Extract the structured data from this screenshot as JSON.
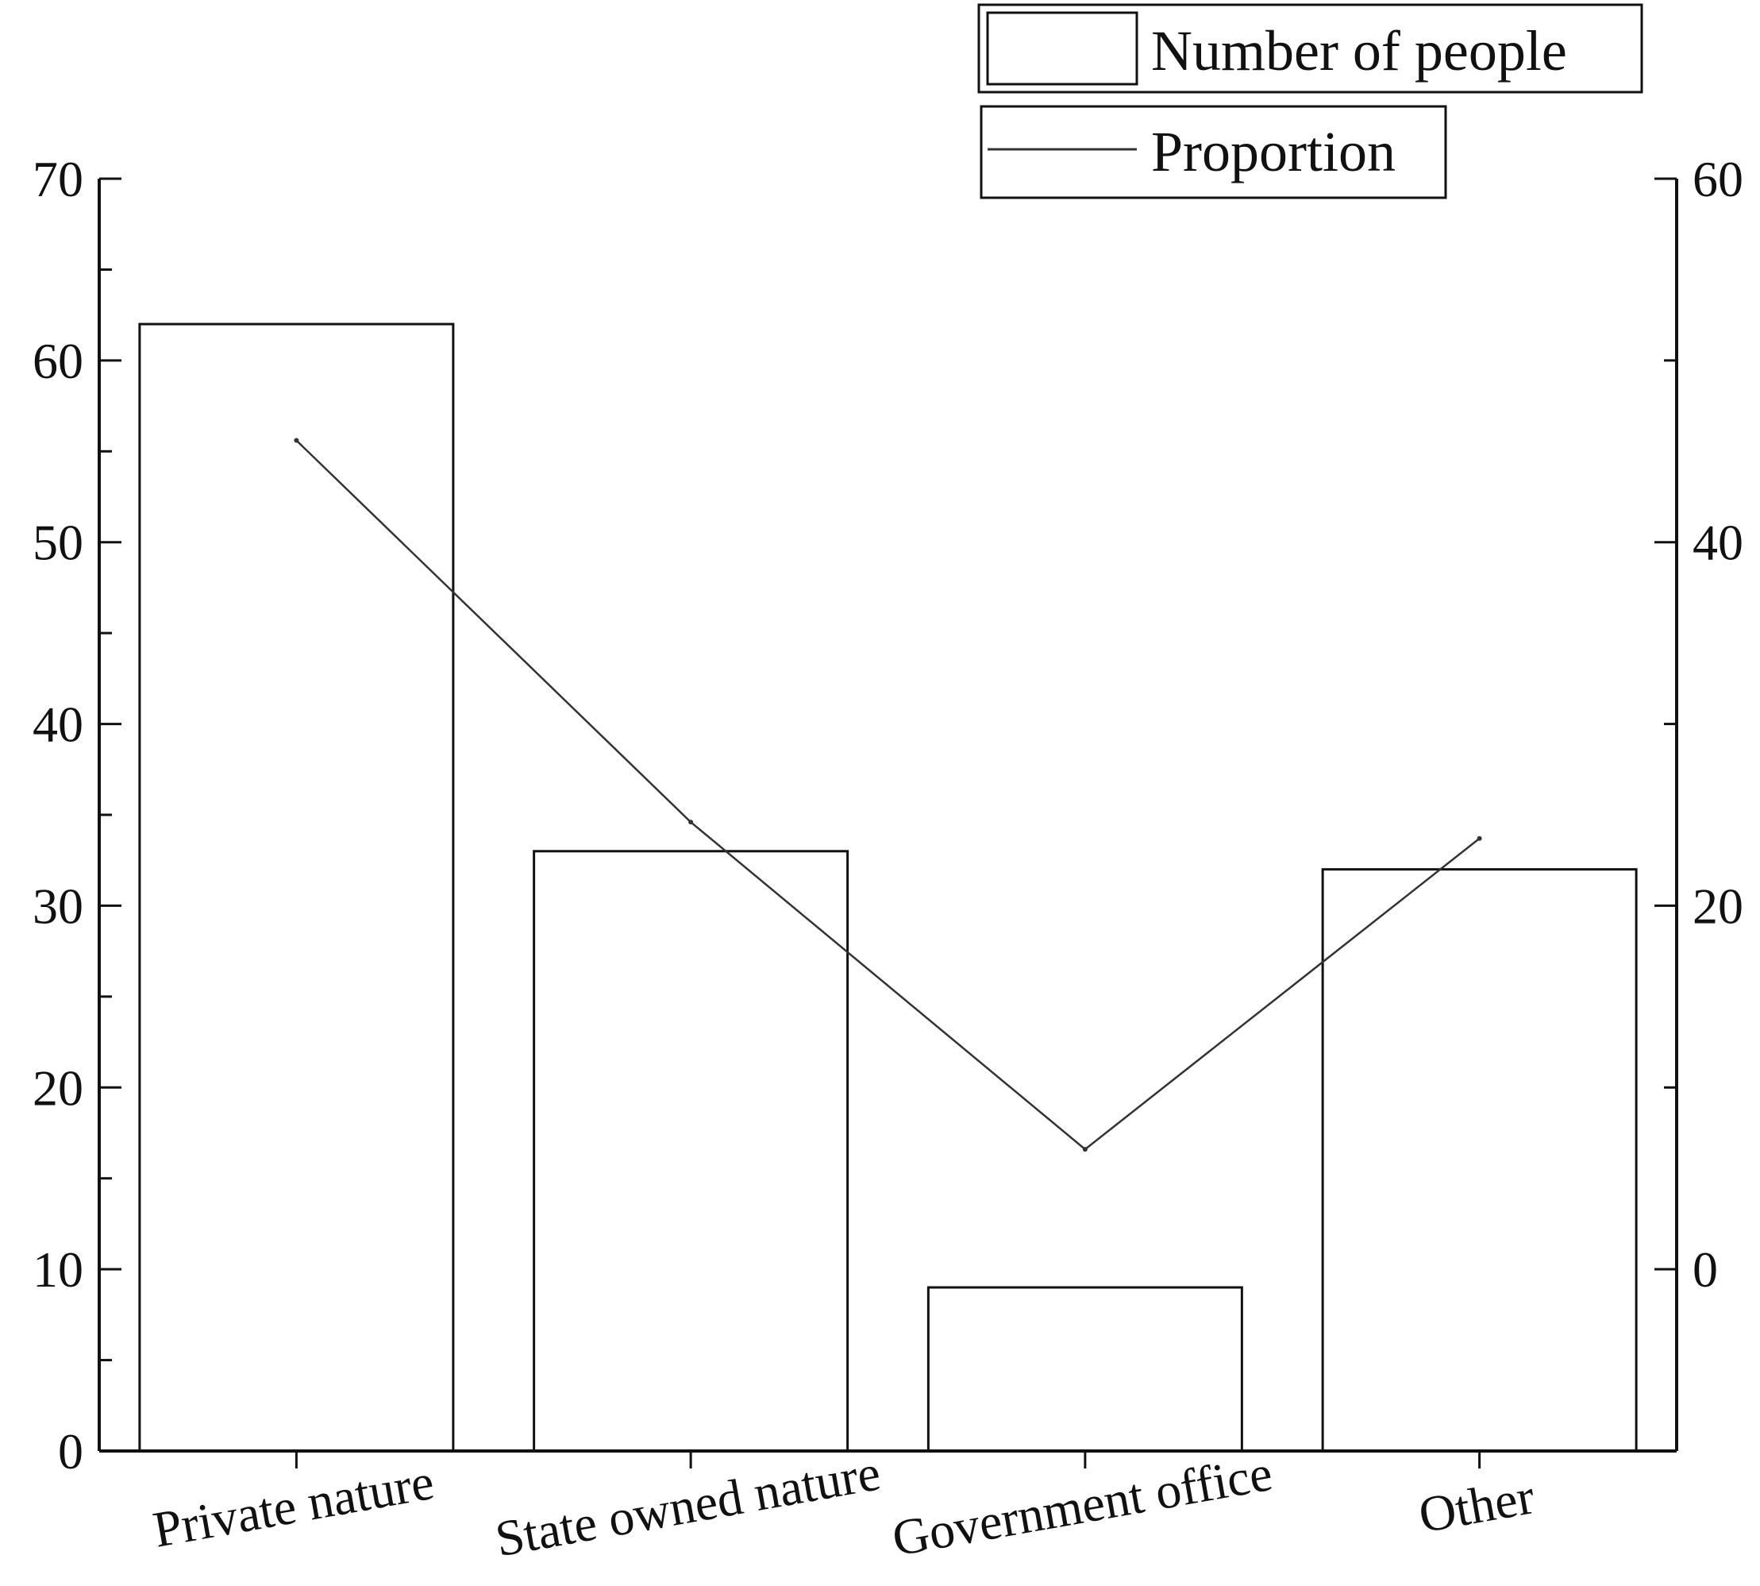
{
  "chart_data": {
    "type": "bar",
    "categories": [
      "Private nature",
      "State owned nature",
      "Government office",
      "Other"
    ],
    "series": [
      {
        "name": "Number of people",
        "type": "bar",
        "axis": "left",
        "values": [
          62,
          33,
          9,
          32
        ]
      },
      {
        "name": "Proportion",
        "type": "line",
        "axis": "right",
        "values": [
          45.6,
          24.6,
          6.6,
          23.7
        ]
      }
    ],
    "y_left": {
      "ylim": [
        0,
        70
      ],
      "ticks": [
        "0",
        "10",
        "20",
        "30",
        "40",
        "50",
        "60",
        "70"
      ]
    },
    "y_right": {
      "ylim": [
        -10,
        60
      ],
      "ticks": [
        "0",
        "20",
        "40",
        "60"
      ]
    },
    "grid": false,
    "legend_position": "top-right",
    "colors": {
      "axis": "#111111",
      "bar_fill": "#ffffff",
      "bar_stroke": "#111111",
      "line": "#333333"
    }
  }
}
